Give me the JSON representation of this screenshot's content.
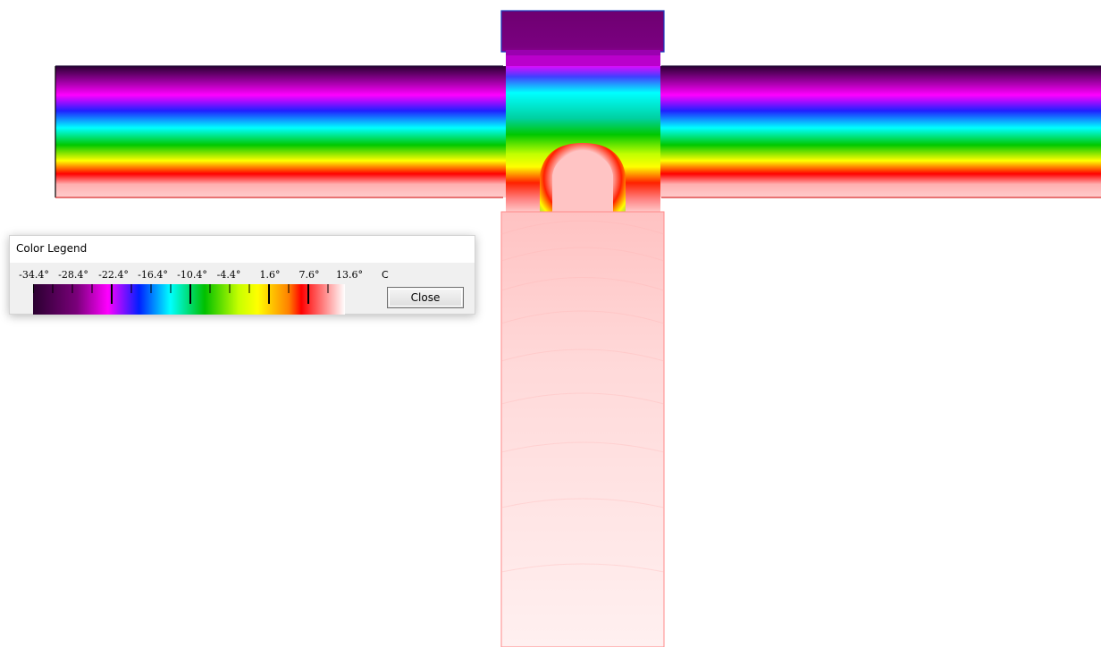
{
  "legend": {
    "title": "Color Legend",
    "labels": [
      "-34.4°",
      "-28.4°",
      "-22.4°",
      "-16.4°",
      "-10.4°",
      "-4.4°",
      "1.6°",
      "7.6°",
      "13.6°"
    ],
    "unit": "C",
    "close_label": "Close",
    "range": [
      -34.4,
      13.6
    ],
    "palette": [
      "#2a0030",
      "#7a007a",
      "#ff00ff",
      "#0000ff",
      "#00ffff",
      "#00c000",
      "#ffff00",
      "#ff0000",
      "#ffffff"
    ]
  }
}
